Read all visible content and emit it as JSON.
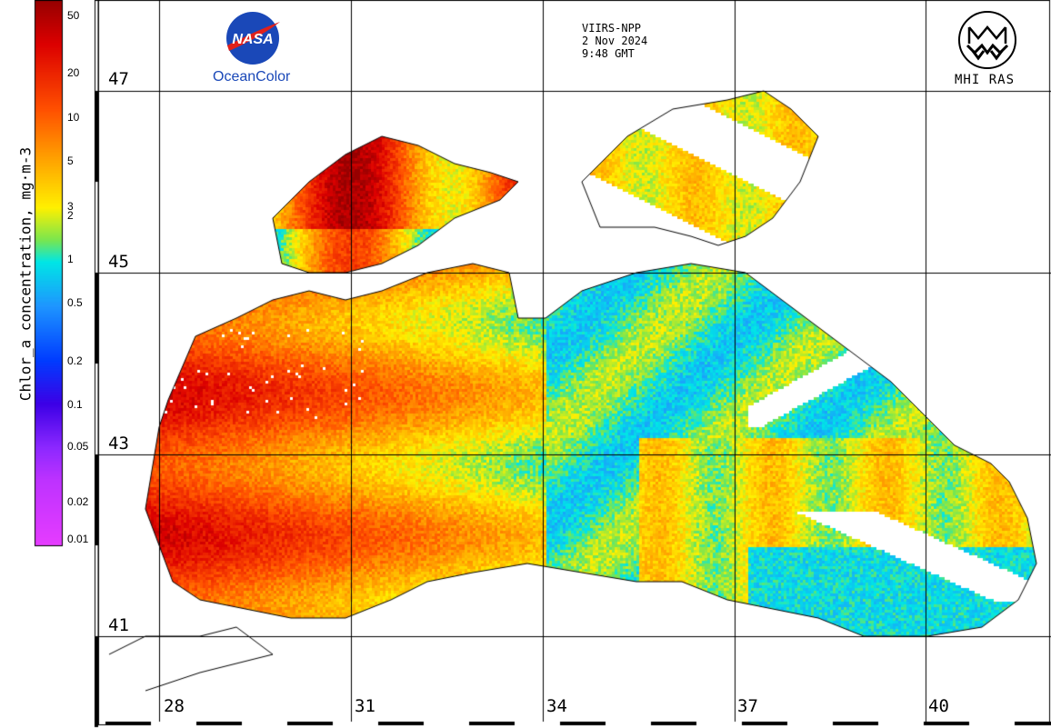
{
  "header": {
    "satellite": "VIIRS-NPP",
    "date": "2 Nov 2024",
    "time": "9:48 GMT"
  },
  "logos": {
    "nasa_text": "NASA",
    "oceancolor": "OceanColor",
    "mhi": "MHI RAS",
    "brand_blue": "#1a48b8",
    "nasa_red": "#e0201b"
  },
  "colorbar": {
    "title": "Chlor_a concentration, mg·m-3",
    "ticks": [
      "50",
      "20",
      "10",
      "5",
      "3",
      "2",
      "1",
      "0.5",
      "0.2",
      "0.1",
      "0.05",
      "0.02",
      "0.01"
    ],
    "scale": "log",
    "range": [
      0.01,
      50
    ]
  },
  "grid": {
    "latitudes": [
      "47",
      "45",
      "43",
      "41"
    ],
    "longitudes": [
      "28",
      "31",
      "34",
      "37",
      "40"
    ]
  },
  "colors": {
    "land": "#ffffff",
    "coastline": "#000000",
    "gridline": "#000000"
  }
}
